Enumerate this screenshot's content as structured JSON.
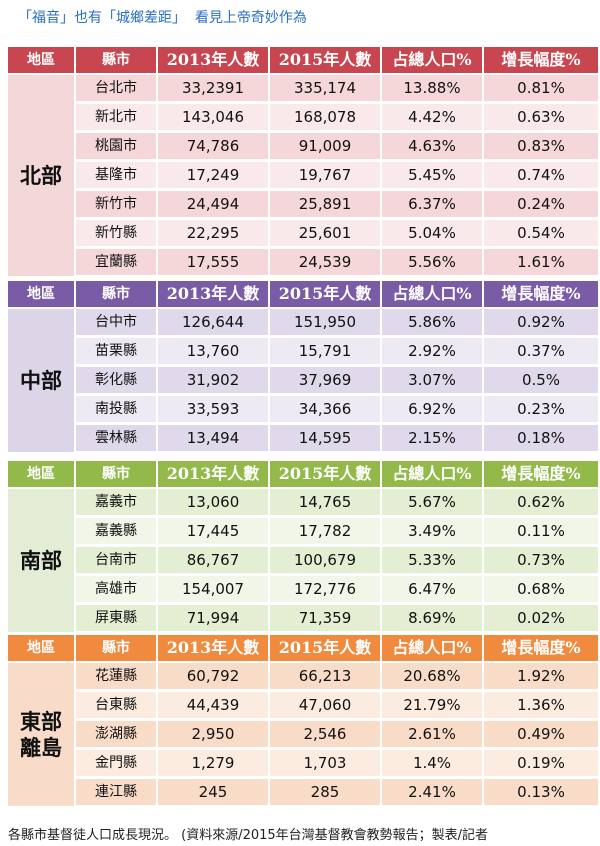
{
  "caption_top": "「福音」也有「城鄉差距」  看見上帝奇妙作為",
  "caption_bottom": "各縣市基督徒人口成長現況。 (資料來源/2015年台灣基督教會教勢報告；製表/記者",
  "headers": [
    "地區",
    "縣市",
    "2013年人數",
    "2015年人數",
    "占總人口%",
    "增長幅度%"
  ],
  "sections": [
    {
      "region": "北部",
      "colors": {
        "header": "#c8464f",
        "region_bg": "#f4d7d8",
        "row_a": "#f6d7d9",
        "row_b": "#fae9ea"
      },
      "rows": [
        [
          "台北市",
          "33,2391",
          "335,174",
          "13.88%",
          "0.81%"
        ],
        [
          "新北市",
          "143,046",
          "168,078",
          "4.42%",
          "0.63%"
        ],
        [
          "桃園市",
          "74,786",
          "91,009",
          "4.63%",
          "0.83%"
        ],
        [
          "基隆市",
          "17,249",
          "19,767",
          "5.45%",
          "0.74%"
        ],
        [
          "新竹市",
          "24,494",
          "25,891",
          "6.37%",
          "0.24%"
        ],
        [
          "新竹縣",
          "22,295",
          "25,601",
          "5.04%",
          "0.54%"
        ],
        [
          "宜蘭縣",
          "17,555",
          "24,539",
          "5.56%",
          "1.61%"
        ]
      ]
    },
    {
      "region": "中部",
      "colors": {
        "header": "#7a5ca6",
        "region_bg": "#dcd5e7",
        "row_a": "#e0d9eb",
        "row_b": "#eeeaf4"
      },
      "rows": [
        [
          "台中市",
          "126,644",
          "151,950",
          "5.86%",
          "0.92%"
        ],
        [
          "苗栗縣",
          "13,760",
          "15,791",
          "2.92%",
          "0.37%"
        ],
        [
          "彰化縣",
          "31,902",
          "37,969",
          "3.07%",
          "0.5%"
        ],
        [
          "南投縣",
          "33,593",
          "34,366",
          "6.92%",
          "0.23%"
        ],
        [
          "雲林縣",
          "13,494",
          "14,595",
          "2.15%",
          "0.18%"
        ]
      ]
    },
    {
      "region": "南部",
      "colors": {
        "header": "#93b94b",
        "region_bg": "#e3ecd4",
        "row_a": "#e4eed3",
        "row_b": "#f1f6e8"
      },
      "rows": [
        [
          "嘉義市",
          "13,060",
          "14,765",
          "5.67%",
          "0.62%"
        ],
        [
          "嘉義縣",
          "17,445",
          "17,782",
          "3.49%",
          "0.11%"
        ],
        [
          "台南市",
          "86,767",
          "100,679",
          "5.33%",
          "0.73%"
        ],
        [
          "高雄市",
          "154,007",
          "172,776",
          "6.47%",
          "0.68%"
        ],
        [
          "屏東縣",
          "71,994",
          "71,359",
          "8.69%",
          "0.02%"
        ]
      ]
    },
    {
      "region": "東部\n離島",
      "colors": {
        "header": "#ef8a3f",
        "region_bg": "#f8dcc9",
        "row_a": "#f9dcc8",
        "row_b": "#fcece0"
      },
      "rows": [
        [
          "花蓮縣",
          "60,792",
          "66,213",
          "20.68%",
          "1.92%"
        ],
        [
          "台東縣",
          "44,439",
          "47,060",
          "21.79%",
          "1.36%"
        ],
        [
          "澎湖縣",
          "2,950",
          "2,546",
          "2.61%",
          "0.49%"
        ],
        [
          "金門縣",
          "1,279",
          "1,703",
          "1.4%",
          "0.19%"
        ],
        [
          "連江縣",
          "245",
          "285",
          "2.41%",
          "0.13%"
        ]
      ]
    }
  ]
}
